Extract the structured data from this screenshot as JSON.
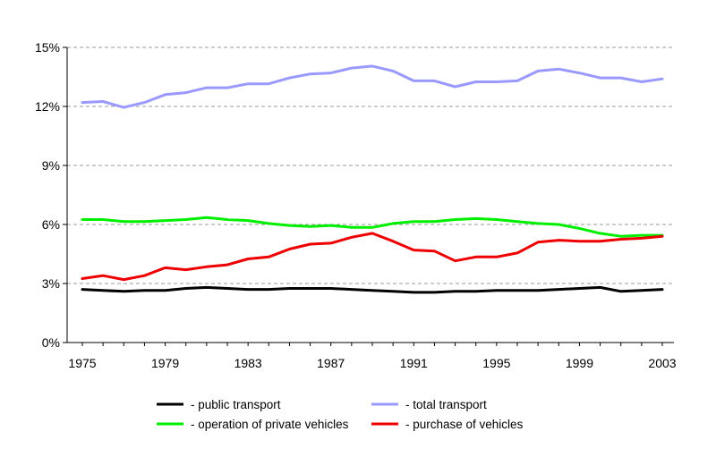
{
  "chart_data": {
    "type": "line",
    "title": "",
    "xlabel": "",
    "ylabel": "",
    "ylim": [
      0,
      15
    ],
    "yticks": [
      0,
      3,
      6,
      9,
      12,
      15
    ],
    "ytick_labels": [
      "0%",
      "3%",
      "6%",
      "9%",
      "12%",
      "15%"
    ],
    "xlim": [
      1975,
      2003
    ],
    "xticks": [
      1975,
      1979,
      1983,
      1987,
      1991,
      1995,
      1999,
      2003
    ],
    "xtick_labels": [
      "1975",
      "1979",
      "1983",
      "1987",
      "1991",
      "1995",
      "1999",
      "2003"
    ],
    "grid": "horizontal dashed",
    "legend_position": "bottom",
    "x": [
      1975,
      1976,
      1977,
      1978,
      1979,
      1980,
      1981,
      1982,
      1983,
      1984,
      1985,
      1986,
      1987,
      1988,
      1989,
      1990,
      1991,
      1992,
      1993,
      1994,
      1995,
      1996,
      1997,
      1998,
      1999,
      2000,
      2001,
      2002,
      2003
    ],
    "series": [
      {
        "name": "- total transport",
        "color": "#9999ff",
        "values": [
          12.2,
          12.25,
          11.95,
          12.2,
          12.6,
          12.7,
          12.95,
          12.95,
          13.15,
          13.15,
          13.45,
          13.65,
          13.7,
          13.95,
          14.05,
          13.8,
          13.3,
          13.3,
          13.0,
          13.25,
          13.25,
          13.3,
          13.8,
          13.9,
          13.7,
          13.45,
          13.45,
          13.25,
          13.4
        ]
      },
      {
        "name": "- operation of private vehicles",
        "color": "#00ee00",
        "values": [
          6.25,
          6.25,
          6.15,
          6.15,
          6.2,
          6.25,
          6.35,
          6.25,
          6.2,
          6.05,
          5.95,
          5.9,
          5.95,
          5.85,
          5.85,
          6.05,
          6.15,
          6.15,
          6.25,
          6.3,
          6.25,
          6.15,
          6.05,
          6.0,
          5.8,
          5.55,
          5.4,
          5.45,
          5.45
        ]
      },
      {
        "name": "- purchase of vehicles",
        "color": "#ee0000",
        "values": [
          3.25,
          3.4,
          3.2,
          3.4,
          3.8,
          3.7,
          3.85,
          3.95,
          4.25,
          4.35,
          4.75,
          5.0,
          5.05,
          5.35,
          5.55,
          5.15,
          4.7,
          4.65,
          4.15,
          4.35,
          4.35,
          4.55,
          5.1,
          5.2,
          5.15,
          5.15,
          5.25,
          5.3,
          5.4
        ]
      },
      {
        "name": "- public transport",
        "color": "#000000",
        "values": [
          2.7,
          2.65,
          2.6,
          2.65,
          2.65,
          2.75,
          2.8,
          2.75,
          2.7,
          2.7,
          2.75,
          2.75,
          2.75,
          2.7,
          2.65,
          2.6,
          2.55,
          2.55,
          2.6,
          2.6,
          2.65,
          2.65,
          2.65,
          2.7,
          2.75,
          2.8,
          2.6,
          2.65,
          2.7
        ]
      }
    ],
    "legend": [
      {
        "name": "- public transport",
        "color": "#000000"
      },
      {
        "name": "- total transport",
        "color": "#9999ff"
      },
      {
        "name": "- operation of private vehicles",
        "color": "#00ee00"
      },
      {
        "name": "- purchase of vehicles",
        "color": "#ee0000"
      }
    ]
  }
}
